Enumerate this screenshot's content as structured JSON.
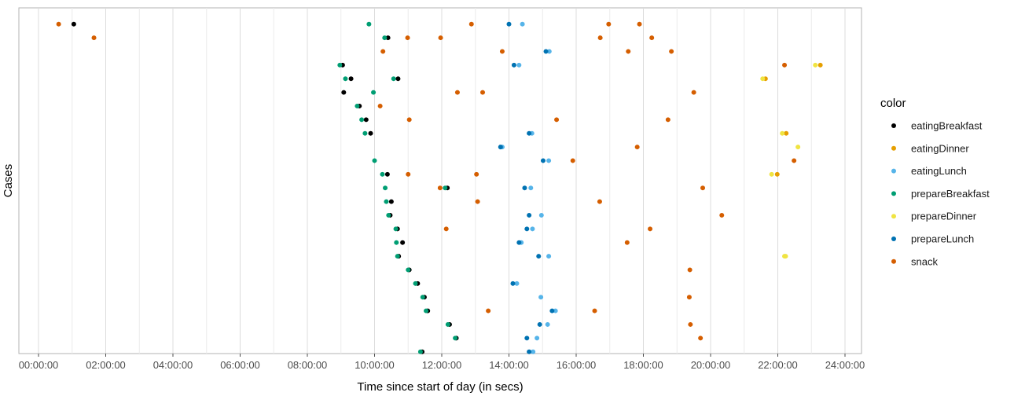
{
  "chart_data": {
    "type": "scatter",
    "title": "",
    "xlabel": "Time since start of day (in secs)",
    "ylabel": "Cases",
    "xlim": [
      0,
      86400
    ],
    "x_ticks": [
      {
        "value": 0,
        "label": "00:00:00"
      },
      {
        "value": 7200,
        "label": "02:00:00"
      },
      {
        "value": 14400,
        "label": "04:00:00"
      },
      {
        "value": 21600,
        "label": "06:00:00"
      },
      {
        "value": 28800,
        "label": "08:00:00"
      },
      {
        "value": 36000,
        "label": "10:00:00"
      },
      {
        "value": 43200,
        "label": "12:00:00"
      },
      {
        "value": 50400,
        "label": "14:00:00"
      },
      {
        "value": 57600,
        "label": "16:00:00"
      },
      {
        "value": 64800,
        "label": "18:00:00"
      },
      {
        "value": 72000,
        "label": "20:00:00"
      },
      {
        "value": 79200,
        "label": "22:00:00"
      },
      {
        "value": 86400,
        "label": "24:00:00"
      }
    ],
    "ylim": [
      0.5,
      24.5
    ],
    "grid": true,
    "legend": {
      "title": "color",
      "position": "right"
    },
    "series": [
      {
        "name": "eatingBreakfast",
        "color": "#000000",
        "points": [
          {
            "x": 3780,
            "y": 24
          },
          {
            "x": 37440,
            "y": 23
          },
          {
            "x": 32580,
            "y": 21
          },
          {
            "x": 33480,
            "y": 20
          },
          {
            "x": 38520,
            "y": 20
          },
          {
            "x": 32700,
            "y": 19
          },
          {
            "x": 34380,
            "y": 18
          },
          {
            "x": 35100,
            "y": 17
          },
          {
            "x": 35580,
            "y": 16
          },
          {
            "x": 37380,
            "y": 13
          },
          {
            "x": 37800,
            "y": 11
          },
          {
            "x": 37680,
            "y": 10
          },
          {
            "x": 38460,
            "y": 9
          },
          {
            "x": 39000,
            "y": 8
          },
          {
            "x": 38580,
            "y": 7
          },
          {
            "x": 39720,
            "y": 6
          },
          {
            "x": 40620,
            "y": 5
          },
          {
            "x": 41340,
            "y": 4
          },
          {
            "x": 41700,
            "y": 3
          },
          {
            "x": 44040,
            "y": 2
          },
          {
            "x": 44760,
            "y": 1
          },
          {
            "x": 43800,
            "y": 12
          },
          {
            "x": 41100,
            "y": 0
          }
        ]
      },
      {
        "name": "eatingDinner",
        "color": "#E69F00",
        "points": [
          {
            "x": 83760,
            "y": 21
          },
          {
            "x": 77880,
            "y": 20
          },
          {
            "x": 80100,
            "y": 16
          },
          {
            "x": 79140,
            "y": 13
          }
        ]
      },
      {
        "name": "eatingLunch",
        "color": "#56B4E9",
        "points": [
          {
            "x": 51840,
            "y": 24
          },
          {
            "x": 54720,
            "y": 22
          },
          {
            "x": 51480,
            "y": 21
          },
          {
            "x": 52860,
            "y": 16
          },
          {
            "x": 49680,
            "y": 15
          },
          {
            "x": 54660,
            "y": 14
          },
          {
            "x": 52740,
            "y": 12
          },
          {
            "x": 53880,
            "y": 10
          },
          {
            "x": 52920,
            "y": 9
          },
          {
            "x": 51720,
            "y": 8
          },
          {
            "x": 54660,
            "y": 7
          },
          {
            "x": 51240,
            "y": 5
          },
          {
            "x": 53820,
            "y": 4
          },
          {
            "x": 55380,
            "y": 3
          },
          {
            "x": 54540,
            "y": 2
          },
          {
            "x": 53400,
            "y": 1
          },
          {
            "x": 52980,
            "y": 0
          }
        ]
      },
      {
        "name": "prepareBreakfast",
        "color": "#009E73",
        "points": [
          {
            "x": 35400,
            "y": 24
          },
          {
            "x": 37080,
            "y": 23
          },
          {
            "x": 32280,
            "y": 21
          },
          {
            "x": 32880,
            "y": 20
          },
          {
            "x": 38040,
            "y": 20
          },
          {
            "x": 35880,
            "y": 19
          },
          {
            "x": 34140,
            "y": 18
          },
          {
            "x": 34620,
            "y": 17
          },
          {
            "x": 34980,
            "y": 16
          },
          {
            "x": 36000,
            "y": 14
          },
          {
            "x": 36840,
            "y": 13
          },
          {
            "x": 37140,
            "y": 12
          },
          {
            "x": 37260,
            "y": 11
          },
          {
            "x": 37500,
            "y": 10
          },
          {
            "x": 38280,
            "y": 9
          },
          {
            "x": 38340,
            "y": 8
          },
          {
            "x": 38460,
            "y": 7
          },
          {
            "x": 39600,
            "y": 6
          },
          {
            "x": 40380,
            "y": 5
          },
          {
            "x": 41160,
            "y": 4
          },
          {
            "x": 41520,
            "y": 3
          },
          {
            "x": 43860,
            "y": 2
          },
          {
            "x": 44640,
            "y": 1
          },
          {
            "x": 43560,
            "y": 12
          },
          {
            "x": 40920,
            "y": 0
          }
        ]
      },
      {
        "name": "prepareDinner",
        "color": "#F0E442",
        "points": [
          {
            "x": 83220,
            "y": 21
          },
          {
            "x": 77580,
            "y": 20
          },
          {
            "x": 79680,
            "y": 16
          },
          {
            "x": 81360,
            "y": 15
          },
          {
            "x": 78540,
            "y": 13
          },
          {
            "x": 79920,
            "y": 7
          },
          {
            "x": 80040,
            "y": 7
          }
        ]
      },
      {
        "name": "prepareLunch",
        "color": "#0072B2",
        "points": [
          {
            "x": 50400,
            "y": 24
          },
          {
            "x": 54360,
            "y": 22
          },
          {
            "x": 50940,
            "y": 21
          },
          {
            "x": 52560,
            "y": 16
          },
          {
            "x": 49500,
            "y": 15
          },
          {
            "x": 54060,
            "y": 14
          },
          {
            "x": 52080,
            "y": 12
          },
          {
            "x": 52560,
            "y": 10
          },
          {
            "x": 52320,
            "y": 9
          },
          {
            "x": 51480,
            "y": 8
          },
          {
            "x": 53580,
            "y": 7
          },
          {
            "x": 50820,
            "y": 5
          },
          {
            "x": 55020,
            "y": 3
          },
          {
            "x": 53700,
            "y": 2
          },
          {
            "x": 52320,
            "y": 1
          },
          {
            "x": 52560,
            "y": 0
          }
        ]
      },
      {
        "name": "snack",
        "color": "#D55E00",
        "points": [
          {
            "x": 2160,
            "y": 24
          },
          {
            "x": 46380,
            "y": 24
          },
          {
            "x": 61080,
            "y": 24
          },
          {
            "x": 64380,
            "y": 24
          },
          {
            "x": 5940,
            "y": 23
          },
          {
            "x": 39540,
            "y": 23
          },
          {
            "x": 43080,
            "y": 23
          },
          {
            "x": 60180,
            "y": 23
          },
          {
            "x": 65700,
            "y": 23
          },
          {
            "x": 36900,
            "y": 22
          },
          {
            "x": 49680,
            "y": 22
          },
          {
            "x": 63180,
            "y": 22
          },
          {
            "x": 67800,
            "y": 22
          },
          {
            "x": 79920,
            "y": 21
          },
          {
            "x": 44880,
            "y": 19
          },
          {
            "x": 47580,
            "y": 19
          },
          {
            "x": 70200,
            "y": 19
          },
          {
            "x": 36600,
            "y": 18
          },
          {
            "x": 55500,
            "y": 17
          },
          {
            "x": 67440,
            "y": 17
          },
          {
            "x": 39720,
            "y": 17
          },
          {
            "x": 64140,
            "y": 15
          },
          {
            "x": 57240,
            "y": 14
          },
          {
            "x": 80940,
            "y": 14
          },
          {
            "x": 39600,
            "y": 13
          },
          {
            "x": 46920,
            "y": 13
          },
          {
            "x": 43020,
            "y": 12
          },
          {
            "x": 71160,
            "y": 12
          },
          {
            "x": 47040,
            "y": 11
          },
          {
            "x": 60120,
            "y": 11
          },
          {
            "x": 73200,
            "y": 10
          },
          {
            "x": 43680,
            "y": 9
          },
          {
            "x": 65520,
            "y": 9
          },
          {
            "x": 63060,
            "y": 8
          },
          {
            "x": 69780,
            "y": 6
          },
          {
            "x": 69720,
            "y": 4
          },
          {
            "x": 48180,
            "y": 3
          },
          {
            "x": 59580,
            "y": 3
          },
          {
            "x": 69840,
            "y": 2
          },
          {
            "x": 70920,
            "y": 1
          }
        ]
      }
    ]
  }
}
